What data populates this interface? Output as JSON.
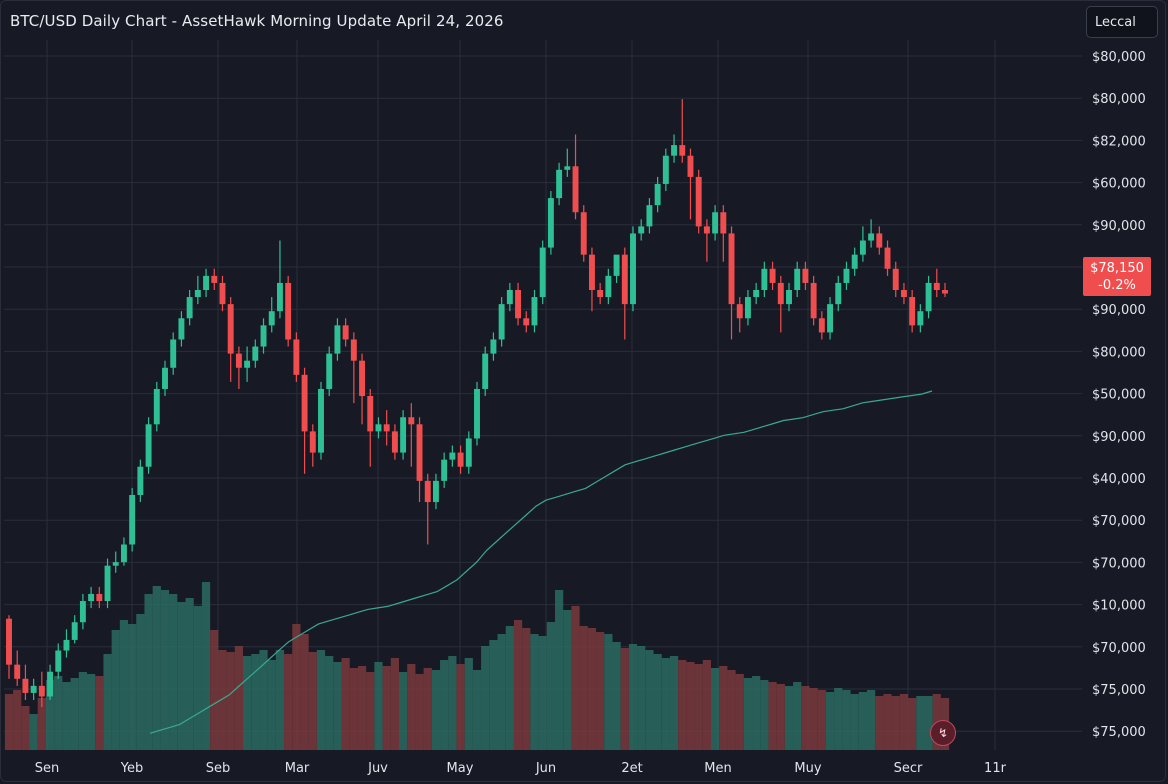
{
  "colors": {
    "background": "#171a25",
    "grid": "#2a2e3b",
    "up": "#2fbf94",
    "down": "#f04e4e",
    "volume_up": "#2b6b61",
    "volume_down": "#7a3a3d",
    "ma_line": "#3aa88f",
    "price_tag": "#f04e4e"
  },
  "header": {
    "title": "BTC/USD Daily Chart - AssetHawk Morning Update April 24, 2026",
    "legend_button": "Leccal"
  },
  "price_tag": {
    "price": "$78,150",
    "change": "-0.2%"
  },
  "alert_icon": "alert-bell-icon",
  "chart_data": {
    "type": "candlestick",
    "title": "BTC/USD Daily Chart - AssetHawk Morning Update April 24, 2026",
    "y_axis_labels": [
      "$80,000",
      "$80,000",
      "$82,000",
      "$60,000",
      "$90,000",
      "$78,150",
      "$90,000",
      "$80,000",
      "$50,000",
      "$90,000",
      "$40,000",
      "$70,000",
      "$70,000",
      "$10,000",
      "$70,000",
      "$75,000",
      "$75,000"
    ],
    "x_axis_labels": [
      "Sen",
      "Yeb",
      "Seb",
      "Mar",
      "Juv",
      "May",
      "Jun",
      "2et",
      "Men",
      "Muy",
      "Secr",
      "11r"
    ],
    "y_range": [
      0,
      100
    ],
    "candles": [
      [
        81.5,
        75,
        82,
        73
      ],
      [
        75,
        73,
        77,
        72
      ],
      [
        73,
        71,
        75,
        70
      ],
      [
        71,
        72,
        73,
        70
      ],
      [
        72,
        70.5,
        74,
        69
      ],
      [
        70.5,
        74,
        75,
        70
      ],
      [
        74,
        77,
        78,
        73
      ],
      [
        77,
        78.5,
        80,
        76
      ],
      [
        78.5,
        81,
        82,
        78
      ],
      [
        81,
        84,
        85,
        80
      ],
      [
        84,
        85,
        86,
        83
      ],
      [
        85,
        84,
        86,
        83
      ],
      [
        84,
        89,
        90,
        83
      ],
      [
        89,
        89.5,
        91,
        88
      ],
      [
        89.5,
        92,
        93,
        89
      ],
      [
        92,
        99,
        100,
        91
      ],
      [
        99,
        103,
        104,
        98
      ],
      [
        103,
        109,
        110,
        102
      ],
      [
        109,
        114,
        115,
        108
      ],
      [
        114,
        117,
        118,
        113
      ],
      [
        117,
        121,
        122,
        116
      ],
      [
        121,
        124,
        125,
        120
      ],
      [
        124,
        127,
        128,
        123
      ],
      [
        127,
        128,
        130,
        126
      ],
      [
        128,
        130,
        131,
        127
      ],
      [
        130,
        129,
        131,
        128
      ],
      [
        129,
        126,
        130,
        125
      ],
      [
        126,
        119,
        127,
        115
      ],
      [
        119,
        117,
        120,
        114
      ],
      [
        117,
        118,
        120,
        115
      ],
      [
        118,
        120,
        121,
        117
      ],
      [
        120,
        123,
        124,
        119
      ],
      [
        123,
        125,
        127,
        122
      ],
      [
        125,
        129,
        135,
        124
      ],
      [
        129,
        121,
        130,
        120
      ],
      [
        121,
        116,
        122,
        115
      ],
      [
        116,
        108,
        117,
        102
      ],
      [
        108,
        105,
        109,
        103
      ],
      [
        105,
        114,
        115,
        104
      ],
      [
        114,
        119,
        120,
        113
      ],
      [
        119,
        123,
        124,
        118
      ],
      [
        123,
        121,
        124,
        120
      ],
      [
        121,
        118,
        122,
        112
      ],
      [
        118,
        113,
        119,
        109
      ],
      [
        113,
        108,
        114,
        103
      ],
      [
        108,
        109,
        110,
        107
      ],
      [
        109,
        108,
        111,
        106
      ],
      [
        108,
        105,
        109,
        104
      ],
      [
        105,
        110,
        111,
        104
      ],
      [
        110,
        109,
        112,
        103
      ],
      [
        109,
        101,
        110,
        98
      ],
      [
        101,
        98,
        102,
        92
      ],
      [
        98,
        101,
        102,
        97
      ],
      [
        101,
        104,
        105,
        100
      ],
      [
        104,
        105,
        106,
        103
      ],
      [
        105,
        103,
        106,
        102
      ],
      [
        103,
        107,
        108,
        102
      ],
      [
        107,
        114,
        115,
        106
      ],
      [
        114,
        119,
        120,
        113
      ],
      [
        119,
        121,
        122,
        118
      ],
      [
        121,
        126,
        127,
        120
      ],
      [
        126,
        128,
        129,
        125
      ],
      [
        128,
        124,
        129,
        123
      ],
      [
        124,
        123,
        125,
        122
      ],
      [
        123,
        127,
        128,
        122
      ],
      [
        127,
        134,
        135,
        126
      ],
      [
        134,
        141,
        142,
        133
      ],
      [
        141,
        145,
        146,
        140
      ],
      [
        145,
        145.5,
        148,
        144
      ],
      [
        145.5,
        139,
        150,
        138
      ],
      [
        139,
        133,
        140,
        132
      ],
      [
        133,
        128,
        134,
        125
      ],
      [
        128,
        127,
        129,
        126
      ],
      [
        127,
        130,
        131,
        126
      ],
      [
        130,
        133,
        131,
        129
      ],
      [
        133,
        126,
        134,
        121
      ],
      [
        126,
        136,
        137,
        125
      ],
      [
        136,
        137,
        138,
        135
      ],
      [
        137,
        140,
        141,
        136
      ],
      [
        140,
        143,
        144,
        139
      ],
      [
        143,
        147,
        148,
        142
      ],
      [
        147,
        148.5,
        150,
        146
      ],
      [
        148.5,
        147,
        155,
        146
      ],
      [
        147,
        144,
        148,
        138
      ],
      [
        144,
        137,
        145,
        136
      ],
      [
        137,
        136,
        138,
        132
      ],
      [
        136,
        139,
        140,
        135
      ],
      [
        139,
        136,
        140,
        132
      ],
      [
        136,
        126,
        137,
        121
      ],
      [
        126,
        124,
        127,
        122
      ],
      [
        124,
        127,
        128,
        123
      ],
      [
        127,
        128,
        129,
        126
      ],
      [
        128,
        131,
        132,
        127
      ],
      [
        131,
        129,
        132,
        128
      ],
      [
        129,
        126,
        130,
        122
      ],
      [
        126,
        128,
        129,
        125
      ],
      [
        128,
        131,
        132,
        127
      ],
      [
        131,
        129,
        132,
        128
      ],
      [
        129,
        124,
        130,
        123
      ],
      [
        124,
        122,
        125,
        121
      ],
      [
        122,
        126,
        127,
        121
      ],
      [
        126,
        129,
        130,
        125
      ],
      [
        129,
        131,
        132,
        128
      ],
      [
        131,
        133,
        134,
        130
      ],
      [
        133,
        135,
        137,
        132
      ],
      [
        135,
        136,
        138,
        134
      ],
      [
        136,
        134,
        137,
        133
      ],
      [
        134,
        131,
        135,
        130
      ],
      [
        131,
        128,
        132,
        127
      ],
      [
        128,
        127,
        129,
        126
      ],
      [
        127,
        123,
        128,
        122
      ],
      [
        123,
        125,
        126,
        122
      ],
      [
        125,
        129,
        130,
        124
      ],
      [
        129,
        128,
        131,
        127
      ],
      [
        128,
        127.5,
        129,
        127
      ]
    ],
    "volumes": [
      28,
      30,
      22,
      18,
      26,
      35,
      37,
      34,
      36,
      39,
      38,
      37,
      48,
      60,
      65,
      63,
      68,
      78,
      82,
      80,
      78,
      74,
      76,
      72,
      84,
      60,
      50,
      49,
      52,
      47,
      48,
      50,
      45,
      50,
      48,
      63,
      58,
      49,
      50,
      47,
      44,
      46,
      41,
      42,
      39,
      44,
      42,
      46,
      39,
      43,
      38,
      41,
      40,
      45,
      47,
      43,
      46,
      40,
      52,
      55,
      58,
      62,
      65,
      61,
      58,
      57,
      64,
      80,
      70,
      72,
      62,
      61,
      59,
      58,
      54,
      51,
      53,
      52,
      50,
      48,
      46,
      47,
      45,
      44,
      43,
      45,
      41,
      42,
      40,
      38,
      36,
      37,
      35,
      34,
      33,
      32,
      34,
      32,
      31,
      30,
      29,
      31,
      30,
      28,
      29,
      30,
      27,
      28,
      27,
      28,
      26,
      27,
      27,
      28,
      26
    ],
    "moving_average": [
      5,
      6,
      7,
      8,
      10,
      12,
      14,
      16,
      18,
      21,
      24,
      27,
      30,
      33,
      36,
      38,
      40,
      42,
      43,
      44,
      45,
      46,
      47,
      47.5,
      48,
      49,
      50,
      51,
      52,
      53,
      55,
      57,
      60,
      63,
      67,
      70,
      73,
      76,
      79,
      82,
      84,
      85,
      86,
      87,
      88,
      90,
      92,
      94,
      96,
      97,
      98,
      99,
      100,
      101,
      102,
      103,
      104,
      105,
      106,
      106.5,
      107,
      108,
      109,
      110,
      111,
      111.5,
      112,
      113,
      114,
      114.5,
      115,
      116,
      117,
      117.5,
      118,
      118.5,
      119,
      119.5,
      120,
      121
    ]
  }
}
